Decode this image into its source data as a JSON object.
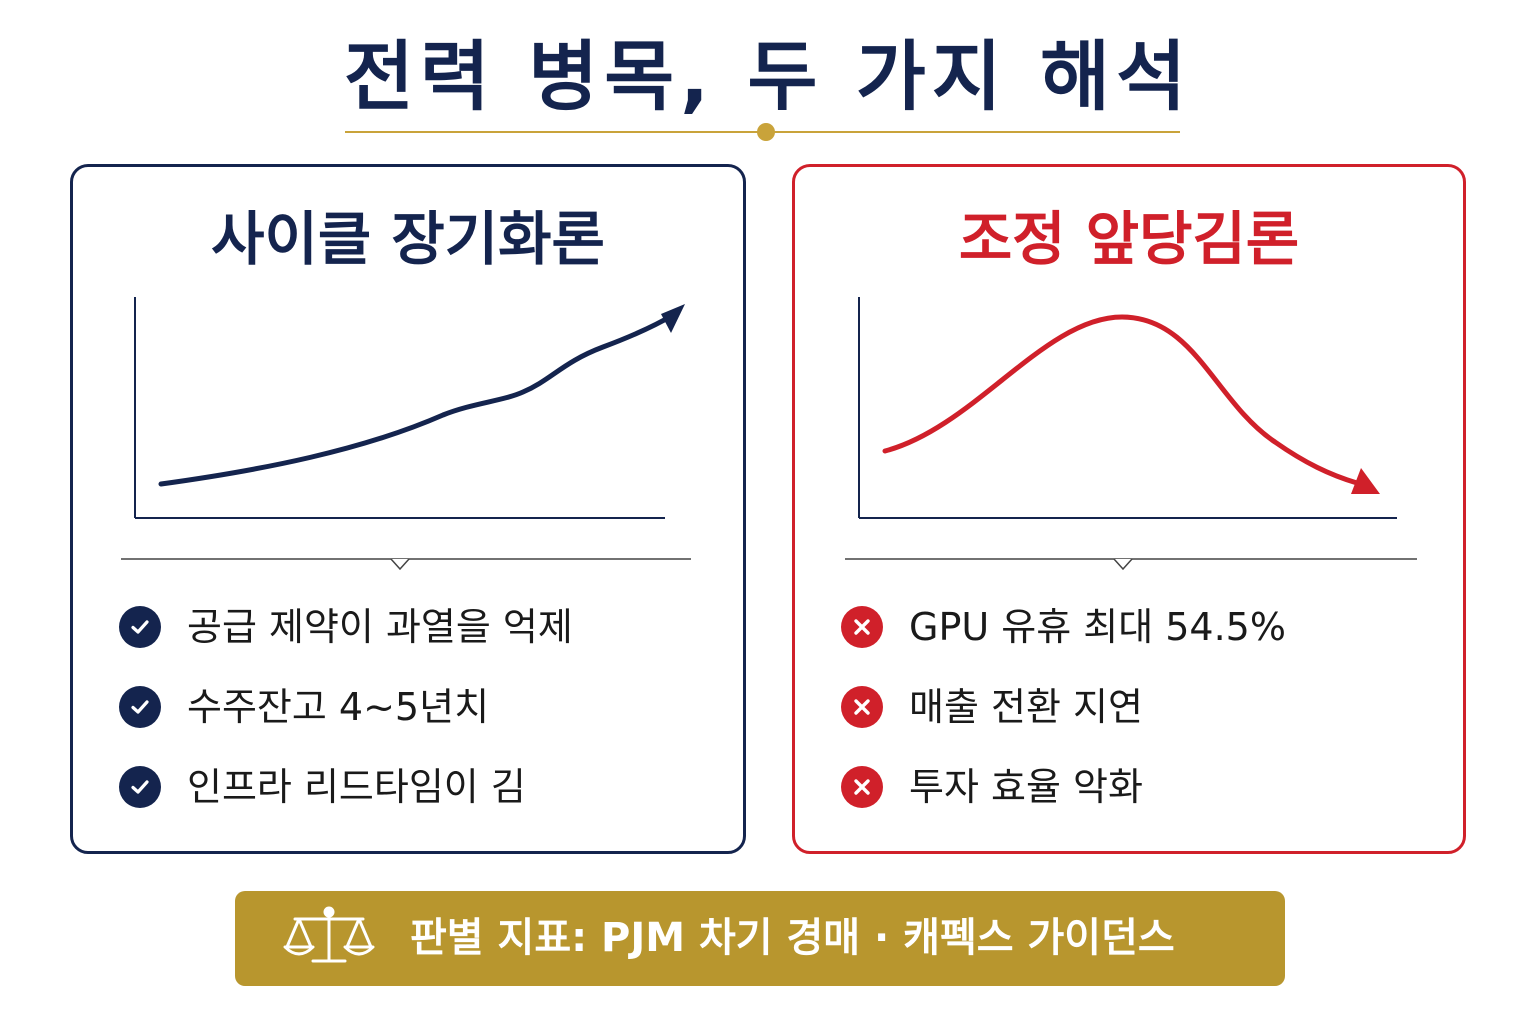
{
  "title": "전력 병목, 두 가지 해석",
  "colors": {
    "navy": "#14244e",
    "red": "#d0202a",
    "gold": "#b8962e",
    "rule_gold": "#c9a33a"
  },
  "left_panel": {
    "title": "사이클 장기화론",
    "trend": "rising",
    "bullet_icon": "check-circle-icon",
    "items": [
      "공급 제약이 과열을 억제",
      "수주잔고 4~5년치",
      "인프라 리드타임이 김"
    ]
  },
  "right_panel": {
    "title": "조정 앞당김론",
    "trend": "peak-then-decline",
    "bullet_icon": "x-circle-icon",
    "items": [
      "GPU 유휴 최대 54.5%",
      "매출 전환 지연",
      "투자 효율 악화"
    ]
  },
  "footer": {
    "icon": "scales-icon",
    "text": "판별 지표: PJM 차기 경매 · 캐펙스 가이던스"
  }
}
